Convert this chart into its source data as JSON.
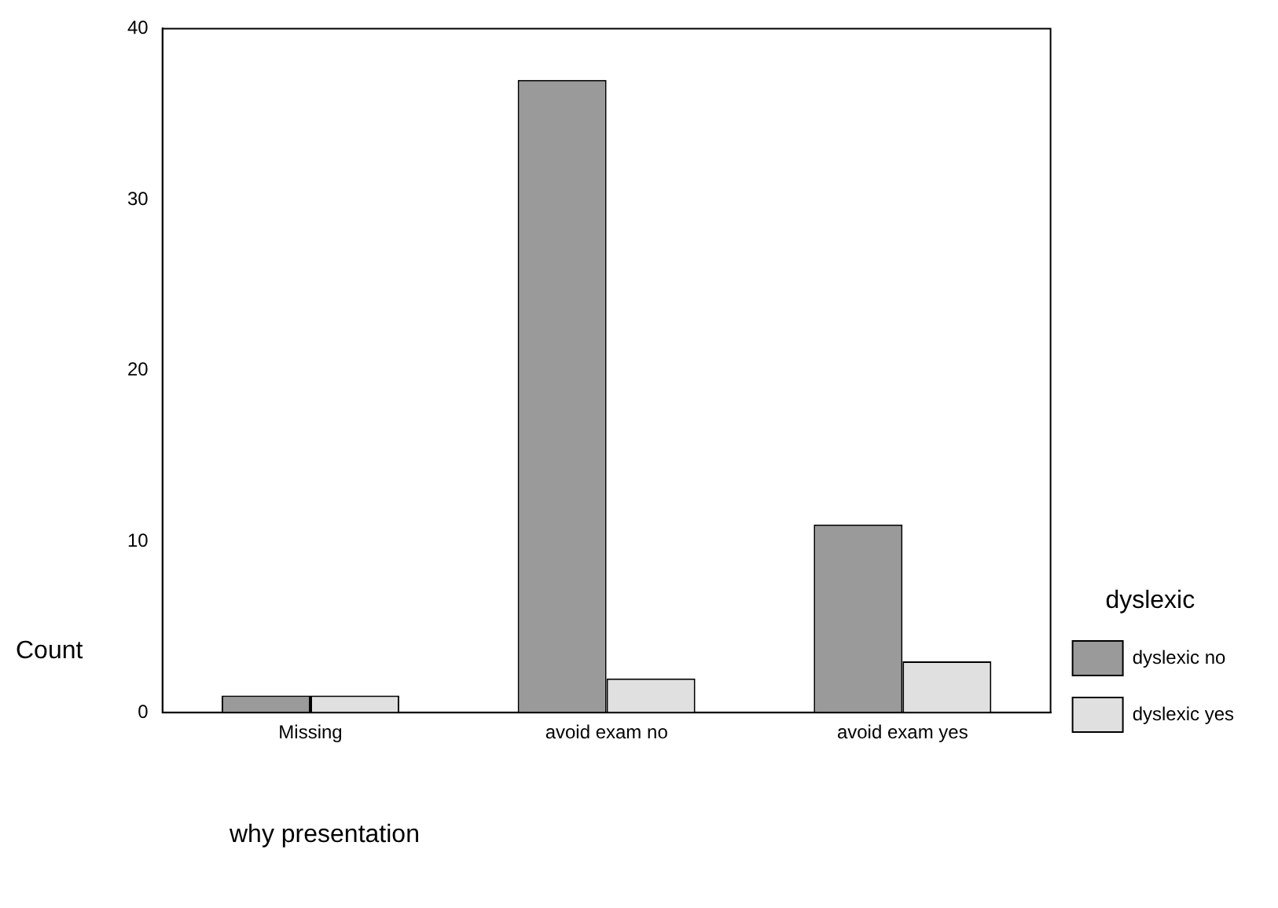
{
  "chart_data": {
    "type": "bar",
    "xlabel": "why presentation",
    "ylabel": "Count",
    "legend_title": "dyslexic",
    "categories": [
      "Missing",
      "avoid exam no",
      "avoid exam yes"
    ],
    "series": [
      {
        "name": "dyslexic no",
        "color": "#9a9a9a",
        "values": [
          1,
          37,
          11
        ]
      },
      {
        "name": "dyslexic yes",
        "color": "#e0e0e0",
        "values": [
          1,
          2,
          3
        ]
      }
    ],
    "ylim": [
      0,
      40
    ],
    "yticks": [
      0,
      10,
      20,
      30,
      40
    ],
    "grid": false,
    "legend": "right"
  }
}
